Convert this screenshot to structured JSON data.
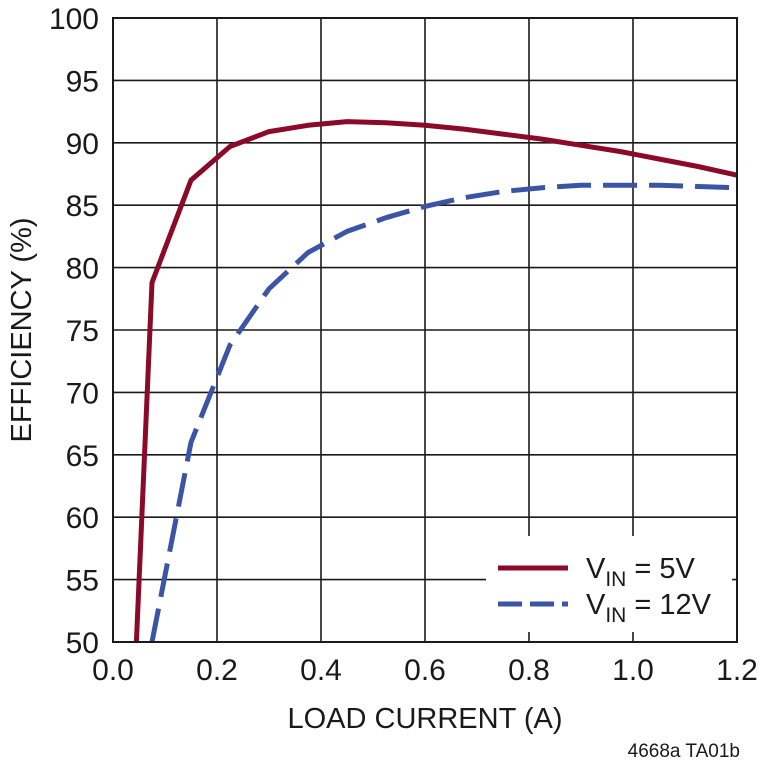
{
  "chart_data": {
    "type": "line",
    "title": "",
    "xlabel": "LOAD CURRENT (A)",
    "ylabel": "EFFICIENCY (%)",
    "xlim": [
      0,
      1.2
    ],
    "ylim": [
      50,
      100
    ],
    "xticks": [
      0,
      0.2,
      0.4,
      0.6,
      0.8,
      1.0,
      1.2
    ],
    "xtick_labels": [
      "0.0",
      "0.2",
      "0.4",
      "0.6",
      "0.8",
      "1.0",
      "1.2"
    ],
    "yticks": [
      50,
      55,
      60,
      65,
      70,
      75,
      80,
      85,
      90,
      95,
      100
    ],
    "ytick_labels": [
      "50",
      "55",
      "60",
      "65",
      "70",
      "75",
      "80",
      "85",
      "90",
      "95",
      "100"
    ],
    "grid": true,
    "legend_position": "bottom-right",
    "series": [
      {
        "name": "VIN = 5V",
        "legend_main": "V",
        "legend_sub": "IN",
        "legend_rest": " = 5V",
        "color": "#8b0a2a",
        "dash": "solid",
        "x": [
          0.045,
          0.075,
          0.15,
          0.225,
          0.3,
          0.375,
          0.45,
          0.525,
          0.6,
          0.675,
          0.75,
          0.825,
          0.9,
          0.975,
          1.05,
          1.125,
          1.2
        ],
        "y": [
          50,
          78.8,
          87,
          89.7,
          90.9,
          91.4,
          91.7,
          91.6,
          91.4,
          91.1,
          90.7,
          90.3,
          89.8,
          89.3,
          88.7,
          88.1,
          87.4
        ]
      },
      {
        "name": "VIN = 12V",
        "legend_main": "V",
        "legend_sub": "IN",
        "legend_rest": " = 12V",
        "color": "#3b55a4",
        "dash": "dashed",
        "x": [
          0.075,
          0.15,
          0.225,
          0.3,
          0.375,
          0.45,
          0.525,
          0.6,
          0.675,
          0.75,
          0.825,
          0.9,
          0.975,
          1.05,
          1.125,
          1.2
        ],
        "y": [
          50,
          66,
          73.8,
          78.3,
          81.2,
          82.9,
          84,
          84.9,
          85.6,
          86.1,
          86.4,
          86.6,
          86.6,
          86.6,
          86.5,
          86.4
        ]
      }
    ],
    "footnote": "4668a TA01b"
  }
}
